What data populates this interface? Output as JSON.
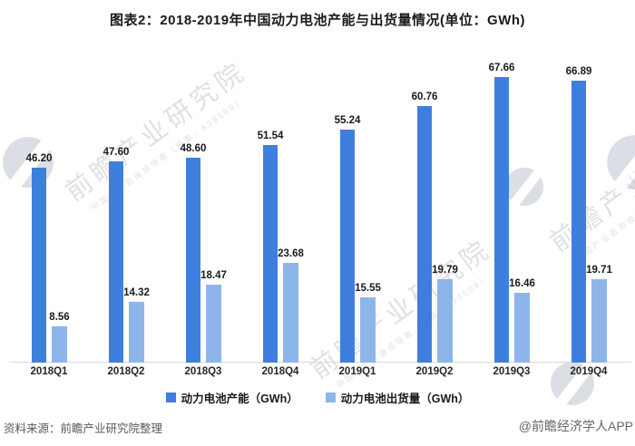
{
  "title": "图表2：2018-2019年中国动力电池产能与出货量情况(单位：GWh)",
  "chart_data": {
    "type": "bar",
    "title": "图表2：2018-2019年中国动力电池产能与出货量情况(单位：GWh)",
    "categories": [
      "2018Q1",
      "2018Q2",
      "2018Q3",
      "2018Q4",
      "2019Q1",
      "2019Q2",
      "2019Q3",
      "2019Q4"
    ],
    "series": [
      {
        "name": "动力电池产能（GWh）",
        "color": "#3e7fdd",
        "values": [
          46.2,
          47.6,
          48.6,
          51.54,
          55.24,
          60.76,
          67.66,
          66.89
        ],
        "labels": [
          "46.20",
          "47.60",
          "48.60",
          "51.54",
          "55.24",
          "60.76",
          "67.66",
          "66.89"
        ]
      },
      {
        "name": "动力电池出货量（GWh）",
        "color": "#8db5ea",
        "values": [
          8.56,
          14.32,
          18.47,
          23.68,
          15.55,
          19.79,
          16.46,
          19.71
        ],
        "labels": [
          "8.56",
          "14.32",
          "18.47",
          "23.68",
          "15.55",
          "19.79",
          "16.46",
          "19.71"
        ]
      }
    ],
    "xlabel": "",
    "ylabel": "",
    "ylim": [
      0,
      70
    ],
    "y_axis_visible": false,
    "grid": false,
    "value_labels": true,
    "legend_position": "bottom"
  },
  "footer": {
    "source": "资料来源：前瞻产业研究院整理",
    "credit": "@前瞻经济学人APP"
  },
  "watermark": {
    "brand": "前瞻产业研究院",
    "tagline": "中国产业咨询领导者（股票：839599）"
  }
}
